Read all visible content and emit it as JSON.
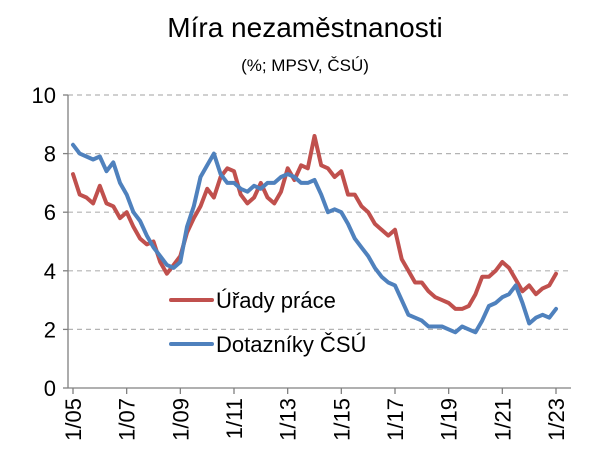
{
  "chart_data": {
    "type": "line",
    "title": "Míra nezaměstnanosti",
    "subtitle": "(%; MPSV, ČSÚ)",
    "xlabel": "",
    "ylabel": "",
    "ylim": [
      0,
      10
    ],
    "yticks": [
      "0",
      "2",
      "4",
      "6",
      "8",
      "10"
    ],
    "xlim": [
      2005.0,
      2023.25
    ],
    "xticks": [
      {
        "label": "1/05",
        "value": 2005.0
      },
      {
        "label": "1/07",
        "value": 2007.0
      },
      {
        "label": "1/09",
        "value": 2009.0
      },
      {
        "label": "1/11",
        "value": 2011.0
      },
      {
        "label": "1/13",
        "value": 2013.0
      },
      {
        "label": "1/15",
        "value": 2015.0
      },
      {
        "label": "1/17",
        "value": 2017.0
      },
      {
        "label": "1/19",
        "value": 2019.0
      },
      {
        "label": "1/21",
        "value": 2021.0
      },
      {
        "label": "1/23",
        "value": 2023.0
      }
    ],
    "grid": "horizontal dashed",
    "legend_position": "lower-center",
    "series": [
      {
        "name": "Úřady práce",
        "color": "#c0504d",
        "x": [
          2005.0,
          2005.25,
          2005.5,
          2005.75,
          2006.0,
          2006.25,
          2006.5,
          2006.75,
          2007.0,
          2007.25,
          2007.5,
          2007.75,
          2008.0,
          2008.25,
          2008.5,
          2008.75,
          2009.0,
          2009.25,
          2009.5,
          2009.75,
          2010.0,
          2010.25,
          2010.5,
          2010.75,
          2011.0,
          2011.25,
          2011.5,
          2011.75,
          2012.0,
          2012.25,
          2012.5,
          2012.75,
          2013.0,
          2013.25,
          2013.5,
          2013.75,
          2014.0,
          2014.25,
          2014.5,
          2014.75,
          2015.0,
          2015.25,
          2015.5,
          2015.75,
          2016.0,
          2016.25,
          2016.5,
          2016.75,
          2017.0,
          2017.25,
          2017.5,
          2017.75,
          2018.0,
          2018.25,
          2018.5,
          2018.75,
          2019.0,
          2019.25,
          2019.5,
          2019.75,
          2020.0,
          2020.25,
          2020.5,
          2020.75,
          2021.0,
          2021.25,
          2021.5,
          2021.75,
          2022.0,
          2022.25,
          2022.5,
          2022.75,
          2023.0
        ],
        "values": [
          7.3,
          6.6,
          6.5,
          6.3,
          6.9,
          6.3,
          6.2,
          5.8,
          6.0,
          5.5,
          5.1,
          4.9,
          5.0,
          4.3,
          3.9,
          4.2,
          4.5,
          5.3,
          5.8,
          6.2,
          6.8,
          6.5,
          7.2,
          7.5,
          7.4,
          6.6,
          6.3,
          6.5,
          7.0,
          6.5,
          6.3,
          6.7,
          7.5,
          7.1,
          7.6,
          7.5,
          8.6,
          7.6,
          7.5,
          7.2,
          7.4,
          6.6,
          6.6,
          6.2,
          6.0,
          5.6,
          5.4,
          5.2,
          5.4,
          4.4,
          4.0,
          3.6,
          3.6,
          3.3,
          3.1,
          3.0,
          2.9,
          2.7,
          2.7,
          2.8,
          3.2,
          3.8,
          3.8,
          4.0,
          4.3,
          4.1,
          3.7,
          3.3,
          3.5,
          3.2,
          3.4,
          3.5,
          3.9
        ]
      },
      {
        "name": "Dotazníky ČSÚ",
        "color": "#4f81bd",
        "x": [
          2005.0,
          2005.25,
          2005.5,
          2005.75,
          2006.0,
          2006.25,
          2006.5,
          2006.75,
          2007.0,
          2007.25,
          2007.5,
          2007.75,
          2008.0,
          2008.25,
          2008.5,
          2008.75,
          2009.0,
          2009.25,
          2009.5,
          2009.75,
          2010.0,
          2010.25,
          2010.5,
          2010.75,
          2011.0,
          2011.25,
          2011.5,
          2011.75,
          2012.0,
          2012.25,
          2012.5,
          2012.75,
          2013.0,
          2013.25,
          2013.5,
          2013.75,
          2014.0,
          2014.25,
          2014.5,
          2014.75,
          2015.0,
          2015.25,
          2015.5,
          2015.75,
          2016.0,
          2016.25,
          2016.5,
          2016.75,
          2017.0,
          2017.25,
          2017.5,
          2017.75,
          2018.0,
          2018.25,
          2018.5,
          2018.75,
          2019.0,
          2019.25,
          2019.5,
          2019.75,
          2020.0,
          2020.25,
          2020.5,
          2020.75,
          2021.0,
          2021.25,
          2021.5,
          2021.75,
          2022.0,
          2022.25,
          2022.5,
          2022.75,
          2023.0
        ],
        "values": [
          8.3,
          8.0,
          7.9,
          7.8,
          7.9,
          7.4,
          7.7,
          7.0,
          6.6,
          6.0,
          5.7,
          5.2,
          4.8,
          4.5,
          4.2,
          4.1,
          4.3,
          5.5,
          6.2,
          7.2,
          7.6,
          8.0,
          7.3,
          7.0,
          7.0,
          6.8,
          6.7,
          6.9,
          6.8,
          7.0,
          7.0,
          7.2,
          7.3,
          7.2,
          7.0,
          7.0,
          7.1,
          6.6,
          6.0,
          6.1,
          6.0,
          5.6,
          5.1,
          4.8,
          4.5,
          4.1,
          3.8,
          3.6,
          3.5,
          3.0,
          2.5,
          2.4,
          2.3,
          2.1,
          2.1,
          2.1,
          2.0,
          1.9,
          2.1,
          2.0,
          1.9,
          2.3,
          2.8,
          2.9,
          3.1,
          3.2,
          3.5,
          2.9,
          2.2,
          2.4,
          2.5,
          2.4,
          2.7
        ]
      }
    ]
  }
}
